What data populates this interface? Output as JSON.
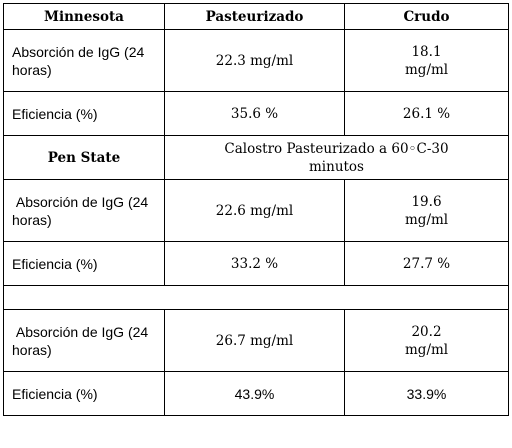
{
  "header": {
    "col1": "Minnesota",
    "col2": "Pasteurizado",
    "col3": "Crudo"
  },
  "minnesota": {
    "absorcion_label": "Absorción de IgG (24 horas)",
    "absorcion_pasteurizado": "22.3 mg/ml",
    "absorcion_crudo": "18.1 mg/ml",
    "eficiencia_label": "Eficiencia (%)",
    "eficiencia_pasteurizado": "35.6 %",
    "eficiencia_crudo": "26.1 %"
  },
  "pen_state": {
    "label": "Pen State",
    "subtitle": "Calostro Pasteurizado a 60◦C-30 minutos",
    "absorcion_label": " Absorción de IgG (24 horas)",
    "absorcion_pasteurizado": "22.6 mg/ml",
    "absorcion_crudo": "19.6 mg/ml",
    "eficiencia_label": "Eficiencia (%)",
    "eficiencia_pasteurizado": "33.2 %",
    "eficiencia_crudo": "27.7 %"
  },
  "third": {
    "absorcion_label": " Absorción de IgG (24 horas)",
    "absorcion_pasteurizado": "26.7 mg/ml",
    "absorcion_crudo": "20.2 mg/ml",
    "eficiencia_label": "Eficiencia (%)",
    "eficiencia_pasteurizado": "43.9%",
    "eficiencia_crudo": "33.9%"
  }
}
